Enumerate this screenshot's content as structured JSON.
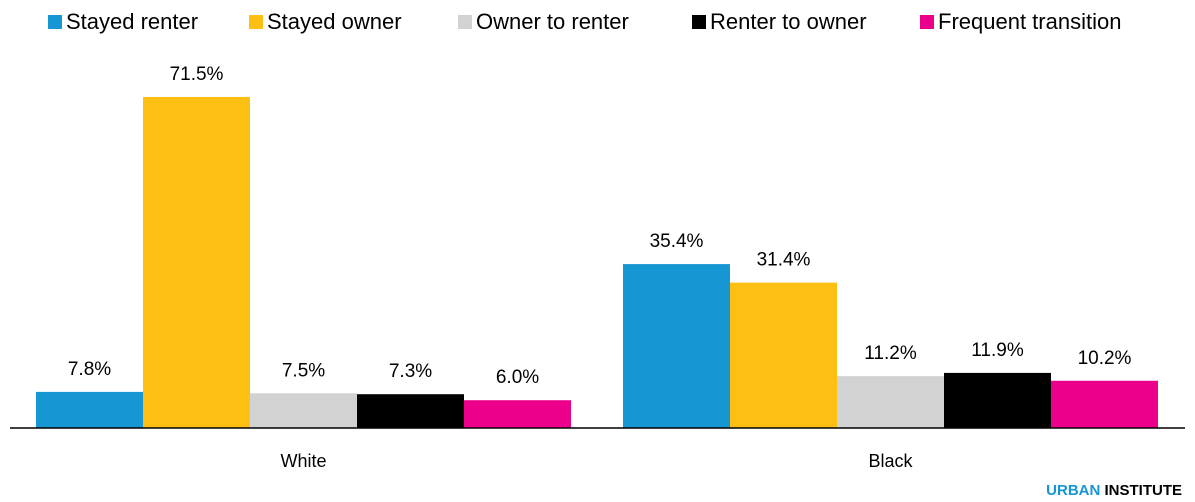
{
  "chart_data": {
    "type": "bar",
    "categories": [
      "White",
      "Black"
    ],
    "series": [
      {
        "name": "Stayed renter",
        "color": "#1696d2",
        "values": [
          7.8,
          35.4
        ],
        "value_labels": [
          "7.8%",
          "35.4%"
        ]
      },
      {
        "name": "Stayed owner",
        "color": "#fdbf11",
        "values": [
          71.5,
          31.4
        ],
        "value_labels": [
          "71.5%",
          "31.4%"
        ]
      },
      {
        "name": "Owner to renter",
        "color": "#d2d2d2",
        "values": [
          7.5,
          11.2
        ],
        "value_labels": [
          "7.5%",
          "11.2%"
        ]
      },
      {
        "name": "Renter to owner",
        "color": "#000000",
        "values": [
          7.3,
          11.9
        ],
        "value_labels": [
          "7.3%",
          "11.9%"
        ]
      },
      {
        "name": "Frequent transition",
        "color": "#ec008b",
        "values": [
          6.0,
          10.2
        ],
        "value_labels": [
          "6.0%",
          "10.2%"
        ]
      }
    ],
    "legend": "top"
  },
  "footer": {
    "brand_primary": "URBAN",
    "brand_secondary": "INSTITUTE"
  }
}
